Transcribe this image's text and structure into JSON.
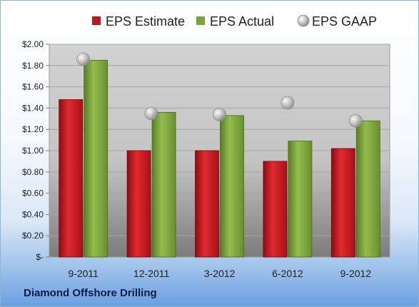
{
  "company": "Diamond Offshore Drilling",
  "colors": {
    "estimate": "#c0161e",
    "actual": "#7aa33a",
    "gaap": "#b5b5b5"
  },
  "chart_data": {
    "type": "bar",
    "title": "",
    "xlabel": "",
    "ylabel": "",
    "categories": [
      "9-2011",
      "12-2011",
      "3-2012",
      "6-2012",
      "9-2012"
    ],
    "ylim": [
      0,
      2.0
    ],
    "yticks": [
      0,
      0.2,
      0.4,
      0.6,
      0.8,
      1.0,
      1.2,
      1.4,
      1.6,
      1.8,
      2.0
    ],
    "ytick_labels": [
      "$-",
      "$0.20",
      "$0.40",
      "$0.60",
      "$0.80",
      "$1.00",
      "$1.20",
      "$1.40",
      "$1.60",
      "$1.80",
      "$2.00"
    ],
    "grid": true,
    "legend": "top",
    "series": [
      {
        "name": "EPS Estimate",
        "kind": "bar",
        "values": [
          1.48,
          1.0,
          1.0,
          0.9,
          1.02
        ]
      },
      {
        "name": "EPS Actual",
        "kind": "bar",
        "values": [
          1.85,
          1.36,
          1.33,
          1.09,
          1.28
        ]
      },
      {
        "name": "EPS GAAP",
        "kind": "scatter",
        "values": [
          1.86,
          1.35,
          1.34,
          1.45,
          1.28
        ]
      }
    ]
  }
}
